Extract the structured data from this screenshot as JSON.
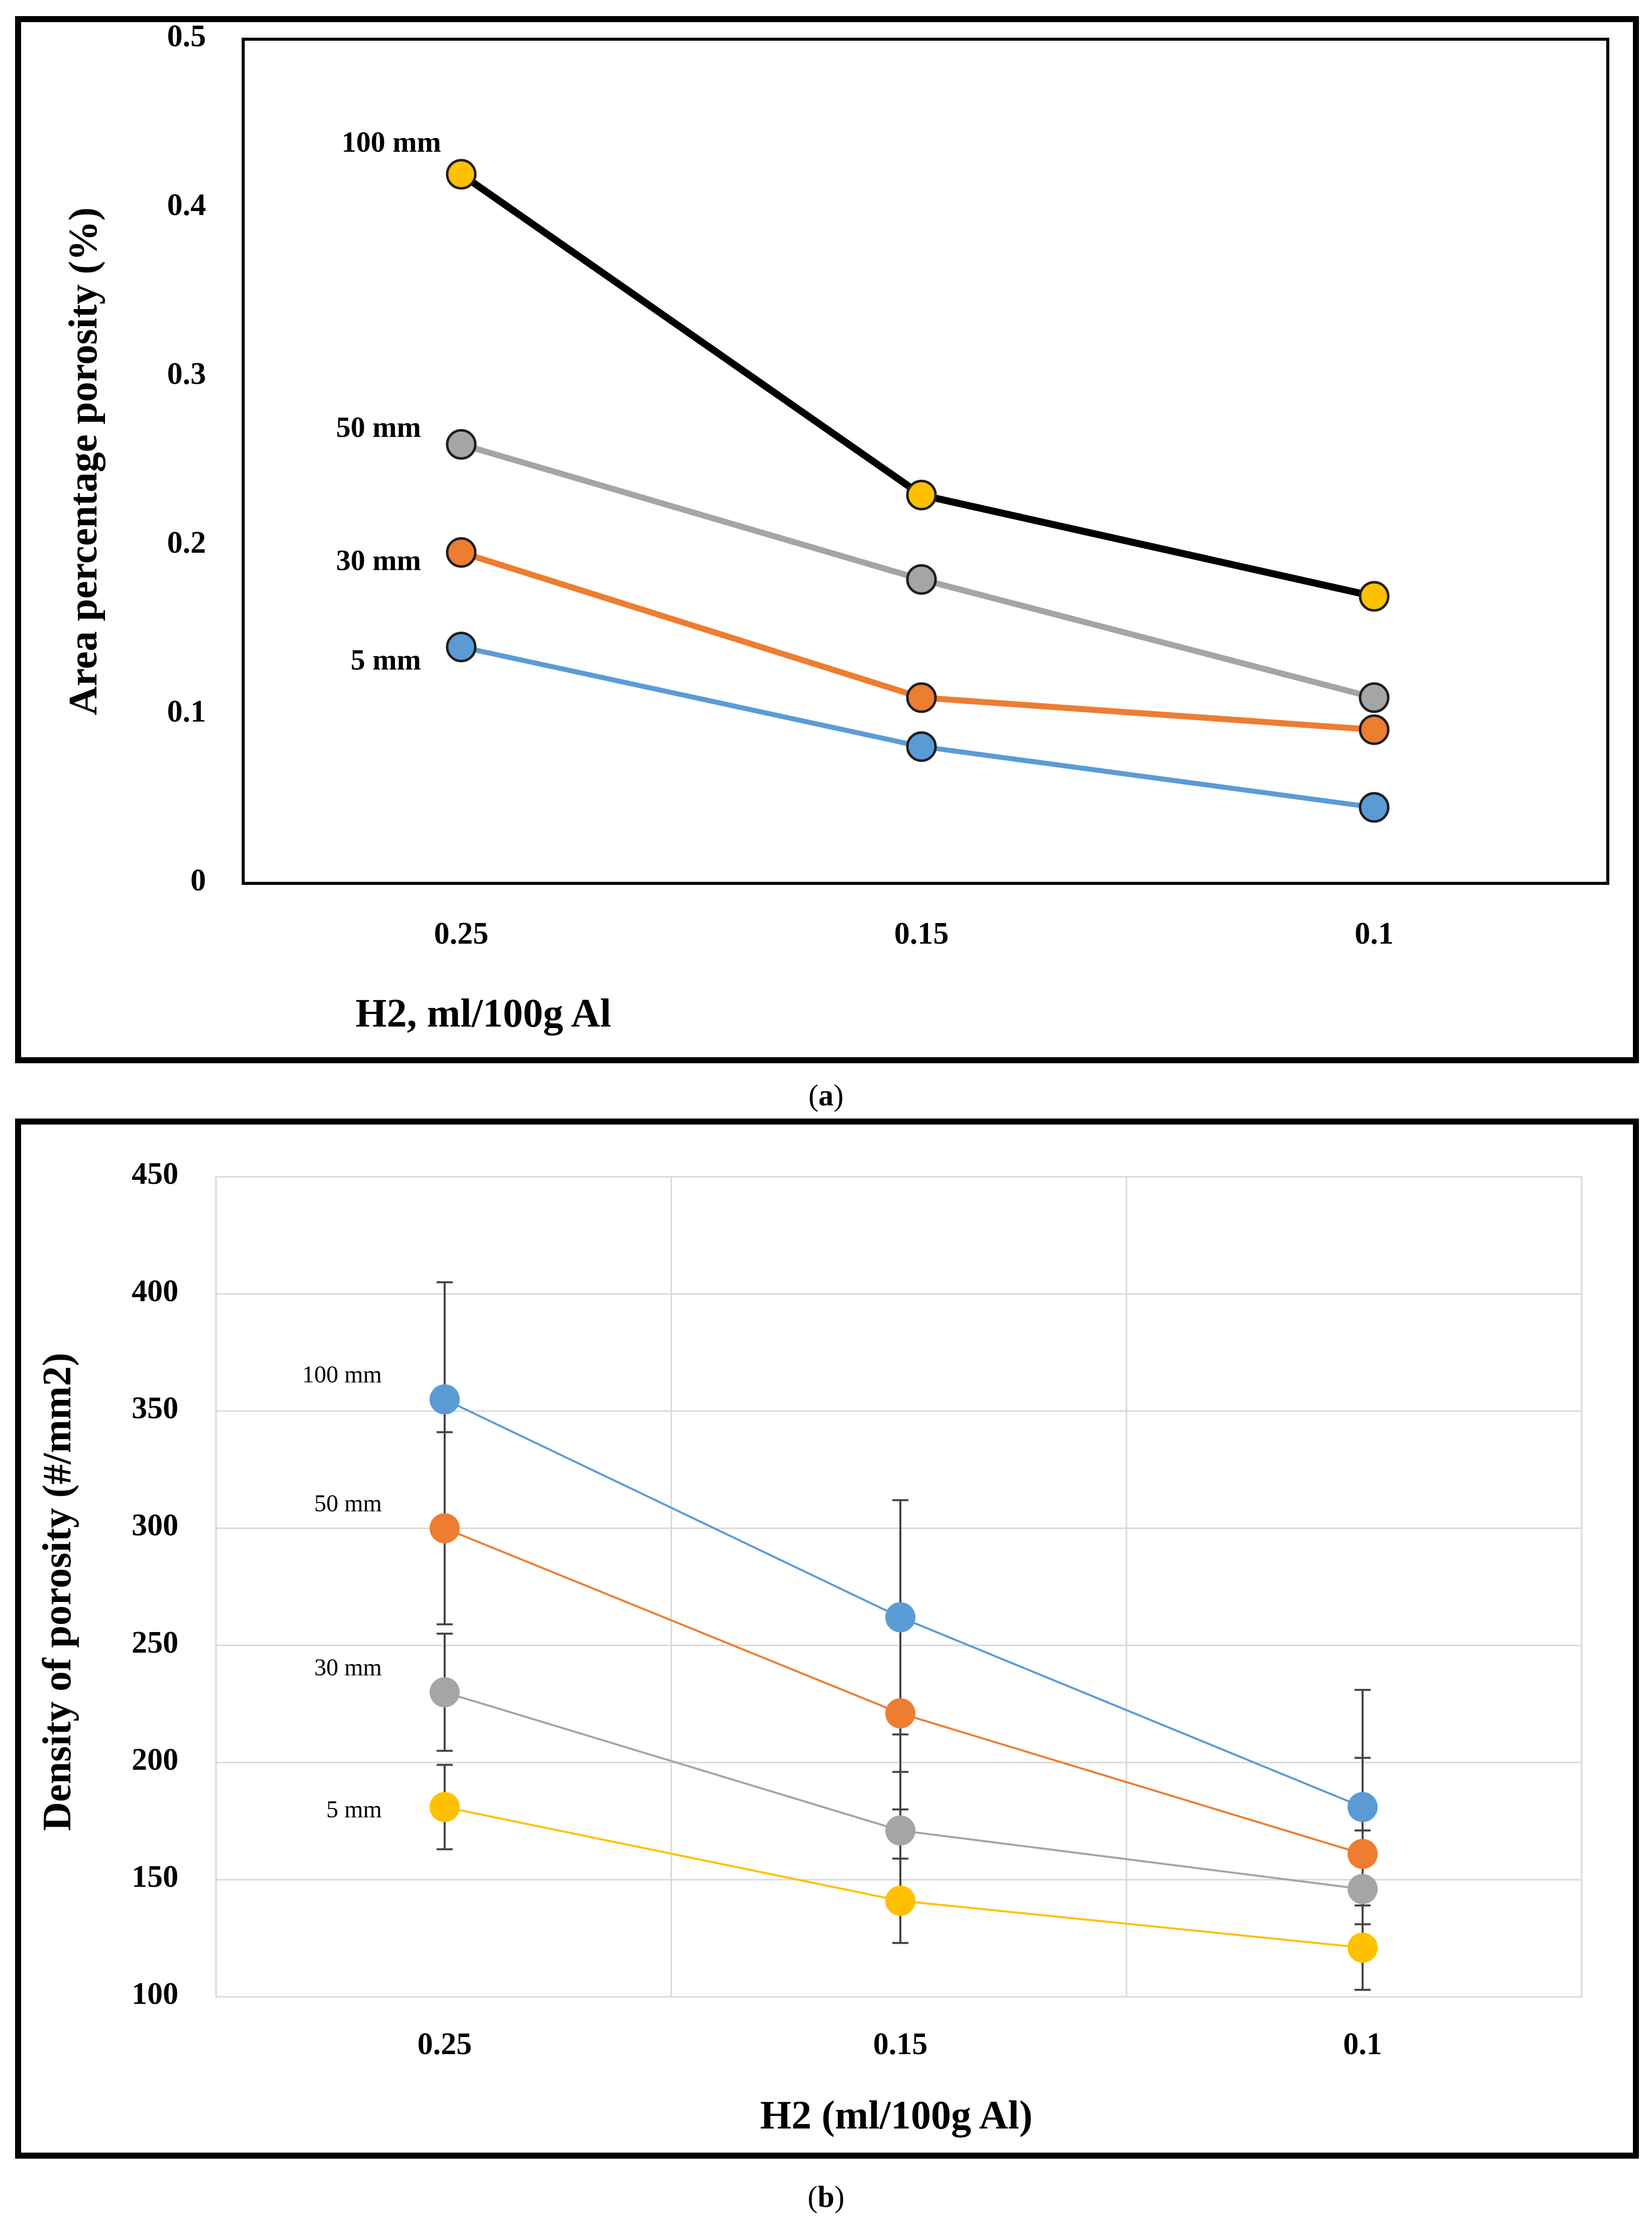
{
  "chart_data": [
    {
      "type": "line",
      "caption_open": "(",
      "caption_letter": "a",
      "caption_close": ")",
      "xlabel": "H2, ml/100g Al",
      "ylabel": "Area percentage porosity (%)",
      "categories": [
        "0.25",
        "0.15",
        "0.1"
      ],
      "ylim": [
        0,
        0.5
      ],
      "yticks": [
        "0",
        "0.1",
        "0.2",
        "0.3",
        "0.4",
        "0.5"
      ],
      "grid": false,
      "series": [
        {
          "name": "100 mm",
          "values": [
            0.42,
            0.23,
            0.17
          ],
          "line_color": "#000000",
          "marker_color": "#FFC000"
        },
        {
          "name": "50 mm",
          "values": [
            0.26,
            0.18,
            0.11
          ],
          "line_color": "#A5A5A5",
          "marker_color": "#A5A5A5"
        },
        {
          "name": "30 mm",
          "values": [
            0.196,
            0.11,
            0.091
          ],
          "line_color": "#ED7D31",
          "marker_color": "#ED7D31"
        },
        {
          "name": "5 mm",
          "values": [
            0.14,
            0.081,
            0.045
          ],
          "line_color": "#5B9BD5",
          "marker_color": "#5B9BD5"
        }
      ]
    },
    {
      "type": "line",
      "caption_open": "(",
      "caption_letter": "b",
      "caption_close": ")",
      "xlabel": "H2 (ml/100g Al)",
      "ylabel": "Density of porosity (#/mm2)",
      "categories": [
        "0.25",
        "0.15",
        "0.1"
      ],
      "ylim": [
        100,
        450
      ],
      "yticks": [
        "100",
        "150",
        "200",
        "250",
        "300",
        "350",
        "400",
        "450"
      ],
      "grid": true,
      "series": [
        {
          "name": "100 mm",
          "values": [
            355,
            262,
            181
          ],
          "error": [
            50,
            50,
            50
          ],
          "line_color": "#5B9BD5",
          "marker_color": "#5B9BD5"
        },
        {
          "name": "50 mm",
          "values": [
            300,
            221,
            161
          ],
          "error": [
            41,
            41,
            41
          ],
          "line_color": "#ED7D31",
          "marker_color": "#ED7D31"
        },
        {
          "name": "30 mm",
          "values": [
            230,
            171,
            146
          ],
          "error": [
            25,
            25,
            25
          ],
          "line_color": "#A5A5A5",
          "marker_color": "#A5A5A5"
        },
        {
          "name": "5 mm",
          "values": [
            181,
            141,
            121
          ],
          "error": [
            18,
            18,
            18
          ],
          "line_color": "#FFC000",
          "marker_color": "#FFC000"
        }
      ]
    }
  ]
}
